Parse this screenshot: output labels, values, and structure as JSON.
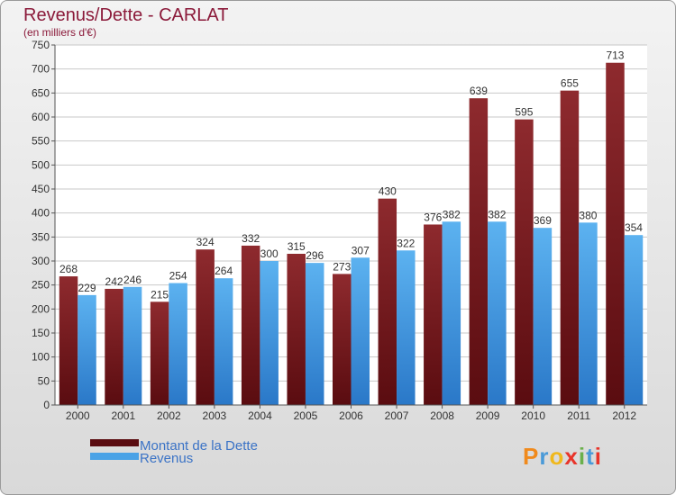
{
  "chart_data": {
    "type": "bar",
    "title": "Revenus/Dette - CARLAT",
    "subtitle": "(en milliers d'€)",
    "categories": [
      "2000",
      "2001",
      "2002",
      "2003",
      "2004",
      "2005",
      "2006",
      "2007",
      "2008",
      "2009",
      "2010",
      "2011",
      "2012"
    ],
    "series": [
      {
        "name": "Montant de la Dette",
        "color": "#7a1e22",
        "values": [
          268,
          242,
          215,
          324,
          332,
          315,
          273,
          430,
          376,
          639,
          595,
          655,
          713
        ]
      },
      {
        "name": "Revenus",
        "color": "#4aa2e6",
        "values": [
          229,
          246,
          254,
          264,
          300,
          296,
          307,
          322,
          382,
          382,
          369,
          380,
          354
        ]
      }
    ],
    "ylim": [
      0,
      750
    ],
    "ytick_step": 50,
    "grid": true,
    "legend_position": "bottom-left"
  },
  "brand": {
    "logo_text": "Proxiti"
  }
}
